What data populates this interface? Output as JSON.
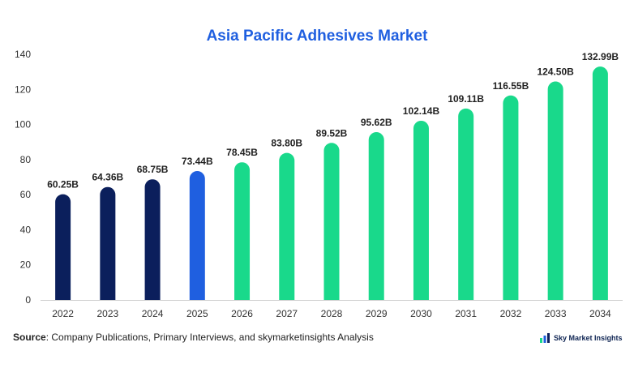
{
  "chart_data": {
    "type": "bar",
    "title": "Asia Pacific Adhesives Market",
    "categories": [
      "2022",
      "2023",
      "2024",
      "2025",
      "2026",
      "2027",
      "2028",
      "2029",
      "2030",
      "2031",
      "2032",
      "2033",
      "2034"
    ],
    "values": [
      60.25,
      64.36,
      68.75,
      73.44,
      78.45,
      83.8,
      89.52,
      95.62,
      102.14,
      109.11,
      116.55,
      124.5,
      132.99
    ],
    "data_labels": [
      "60.25B",
      "64.36B",
      "68.75B",
      "73.44B",
      "78.45B",
      "83.80B",
      "89.52B",
      "95.62B",
      "102.14B",
      "109.11B",
      "116.55B",
      "124.50B",
      "132.99B"
    ],
    "ylim": [
      0,
      140
    ],
    "yticks": [
      0,
      20,
      40,
      60,
      80,
      100,
      120,
      140
    ],
    "xlabel": "",
    "ylabel": "",
    "grid": false,
    "bar_colors": [
      "#0b1f5c",
      "#0b1f5c",
      "#0b1f5c",
      "#1f5fe0",
      "#19d98b",
      "#19d98b",
      "#19d98b",
      "#19d98b",
      "#19d98b",
      "#19d98b",
      "#19d98b",
      "#19d98b",
      "#19d98b"
    ]
  },
  "source": {
    "label": "Source",
    "text": ": Company Publications, Primary Interviews, and skymarketinsights Analysis"
  },
  "brand": {
    "name": "Sky Market Insights",
    "icon": "chart-logo-icon"
  }
}
